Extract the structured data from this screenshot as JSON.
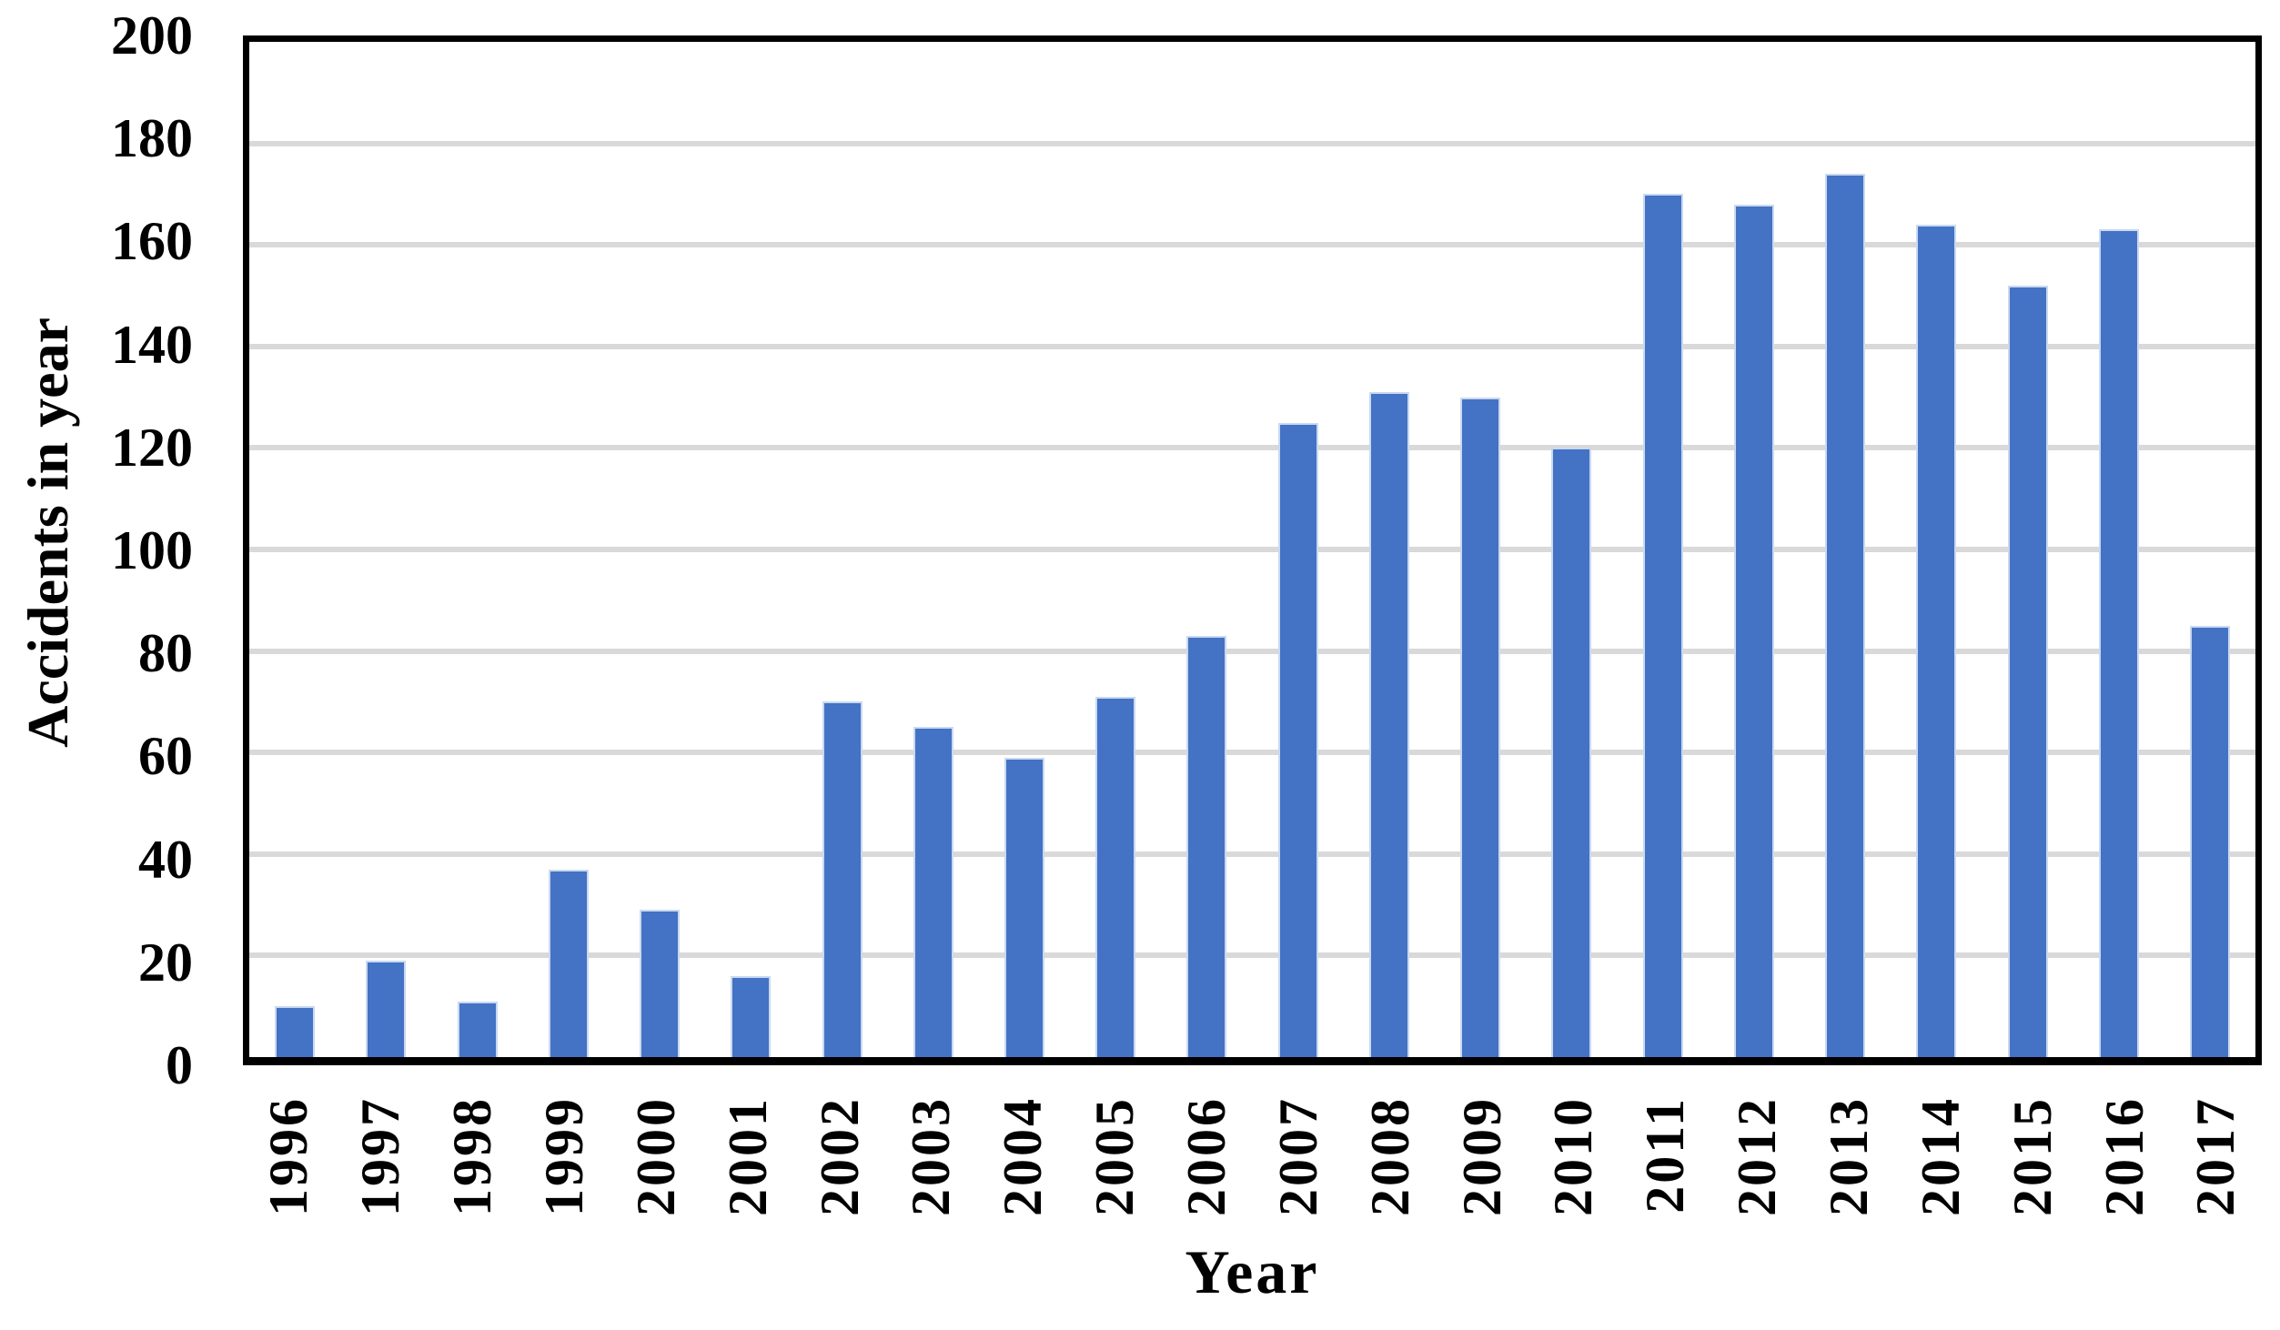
{
  "chart_data": {
    "type": "bar",
    "title": "",
    "xlabel": "Year",
    "ylabel": "Accidents in year",
    "categories": [
      "1996",
      "1997",
      "1998",
      "1999",
      "2000",
      "2001",
      "2002",
      "2003",
      "2004",
      "2005",
      "2006",
      "2007",
      "2008",
      "2009",
      "2010",
      "2011",
      "2012",
      "2013",
      "2014",
      "2015",
      "2016",
      "2017"
    ],
    "values": [
      10,
      19,
      11,
      37,
      29,
      16,
      70,
      65,
      59,
      71,
      83,
      125,
      131,
      130,
      120,
      170,
      168,
      174,
      164,
      152,
      163,
      85
    ],
    "ylim": [
      0,
      200
    ],
    "yticks": [
      0,
      20,
      40,
      60,
      80,
      100,
      120,
      140,
      160,
      180,
      200
    ],
    "grid": "horizontal",
    "legend": "none",
    "bar_color": "#4472C4",
    "gridline_color": "#D9D9D9",
    "axis_color": "#000000",
    "background_color": "#FFFFFF",
    "text_color": "#000000"
  }
}
